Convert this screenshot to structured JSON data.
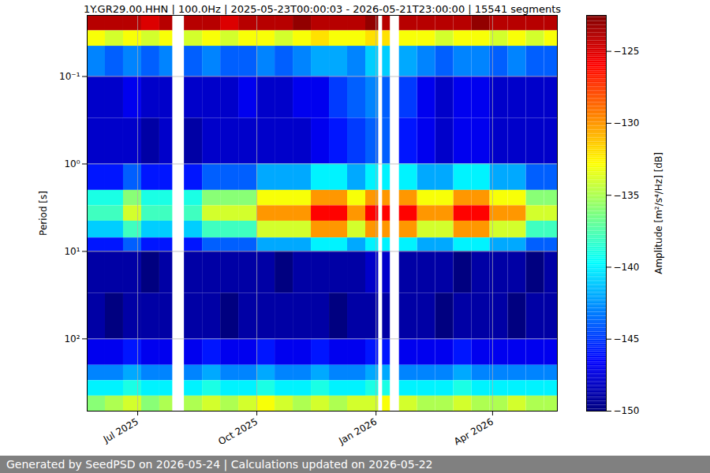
{
  "chart_data": {
    "type": "heatmap",
    "title": "1Y.GR29.00.HHN | 100.0Hz | 2025-05-23T00:00:03 - 2026-05-21T23:00:00 | 15541 segments",
    "ylabel": "Period [s]",
    "footer": "Generated by SeedPSD on 2026-05-24 | Calculations updated on 2026-05-22",
    "x_bins": [
      "2025-05-23",
      "2025-06-06",
      "2025-06-20",
      "2025-07-04",
      "2025-07-18",
      "2025-07-28",
      "2025-08-06",
      "2025-08-20",
      "2025-09-03",
      "2025-09-17",
      "2025-10-01",
      "2025-10-15",
      "2025-10-29",
      "2025-11-12",
      "2025-11-26",
      "2025-12-10",
      "2025-12-24",
      "2026-01-03",
      "2026-01-06",
      "2026-01-12",
      "2026-01-19",
      "2026-02-02",
      "2026-02-16",
      "2026-03-02",
      "2026-03-16",
      "2026-03-30",
      "2026-04-13",
      "2026-04-27",
      "2026-05-11",
      "2026-05-21"
    ],
    "y_bins": [
      0.02,
      0.03,
      0.045,
      0.1,
      0.3,
      1,
      2,
      3,
      4.5,
      7,
      10,
      30,
      100,
      200,
      300,
      450,
      670
    ],
    "values": [
      [
        -124,
        -124,
        -124,
        -125,
        -124,
        null,
        -124,
        -124,
        -125,
        -124,
        -124,
        -124,
        -123,
        -124,
        -124,
        -124,
        -123,
        null,
        -124,
        null,
        -124,
        -124,
        -124,
        -124,
        -123,
        -124,
        -124,
        -124,
        -124
      ],
      [
        -133,
        -134,
        -133,
        -134,
        -133,
        null,
        -134,
        -133,
        -134,
        -133,
        -133,
        -134,
        -133,
        -132,
        -133,
        -133,
        -132,
        null,
        -132,
        null,
        -133,
        -133,
        -134,
        -133,
        -133,
        -134,
        -133,
        -134,
        -133
      ],
      [
        -143,
        -144,
        -143,
        -144,
        -143,
        null,
        -144,
        -143,
        -144,
        -144,
        -143,
        -144,
        -143,
        -142,
        -142,
        -143,
        -141,
        null,
        -141,
        null,
        -142,
        -143,
        -144,
        -143,
        -143,
        -144,
        -143,
        -144,
        -144
      ],
      [
        -148,
        -148,
        -147,
        -148,
        -148,
        null,
        -148,
        -148,
        -148,
        -147,
        -148,
        -148,
        -147,
        -147,
        -145,
        -144,
        -143,
        null,
        -144,
        null,
        -145,
        -147,
        -148,
        -147,
        -147,
        -148,
        -148,
        -148,
        -148
      ],
      [
        -148,
        -148,
        -148,
        -149,
        -148,
        null,
        -149,
        -148,
        -148,
        -148,
        -148,
        -148,
        -148,
        -147,
        -146,
        -145,
        -144,
        null,
        -144,
        null,
        -146,
        -147,
        -148,
        -147,
        -147,
        -148,
        -148,
        -148,
        -148
      ],
      [
        -146,
        -146,
        -144,
        -146,
        -146,
        null,
        -146,
        -144,
        -144,
        -144,
        -142,
        -142,
        -142,
        -140,
        -140,
        -142,
        -140,
        null,
        -140,
        null,
        -140,
        -142,
        -142,
        -140,
        -140,
        -142,
        -142,
        -144,
        -144
      ],
      [
        -139,
        -139,
        -136,
        -139,
        -139,
        null,
        -139,
        -136,
        -136,
        -136,
        -133,
        -133,
        -133,
        -130,
        -130,
        -133,
        -130,
        null,
        -130,
        null,
        -130,
        -133,
        -133,
        -130,
        -130,
        -133,
        -133,
        -136,
        -136
      ],
      [
        -138,
        -138,
        -134,
        -138,
        -138,
        null,
        -138,
        -134,
        -134,
        -134,
        -130,
        -130,
        -130,
        -126,
        -126,
        -130,
        -126,
        null,
        -126,
        null,
        -126,
        -130,
        -130,
        -126,
        -126,
        -130,
        -130,
        -134,
        -134
      ],
      [
        -141,
        -141,
        -138,
        -141,
        -141,
        null,
        -141,
        -138,
        -138,
        -138,
        -134,
        -134,
        -134,
        -130,
        -130,
        -134,
        -130,
        null,
        -130,
        null,
        -130,
        -134,
        -134,
        -130,
        -130,
        -134,
        -134,
        -138,
        -138
      ],
      [
        -146,
        -146,
        -144,
        -146,
        -146,
        null,
        -146,
        -144,
        -144,
        -144,
        -142,
        -142,
        -142,
        -140,
        -140,
        -142,
        -140,
        null,
        -140,
        null,
        -140,
        -142,
        -142,
        -140,
        -140,
        -142,
        -142,
        -144,
        -144
      ],
      [
        -149,
        -149,
        -149,
        -150,
        -149,
        null,
        -149,
        -149,
        -149,
        -149,
        -149,
        -150,
        -149,
        -149,
        -149,
        -149,
        -148,
        null,
        -148,
        null,
        -149,
        -149,
        -149,
        -150,
        -149,
        -149,
        -149,
        -150,
        -149
      ],
      [
        -149,
        -150,
        -149,
        -149,
        -149,
        null,
        -149,
        -149,
        -150,
        -149,
        -149,
        -149,
        -149,
        -149,
        -150,
        -149,
        -149,
        null,
        -149,
        null,
        -149,
        -149,
        -150,
        -149,
        -149,
        -149,
        -150,
        -149,
        -149
      ],
      [
        -147,
        -147,
        -146,
        -147,
        -147,
        null,
        -147,
        -146,
        -147,
        -147,
        -146,
        -147,
        -147,
        -146,
        -147,
        -147,
        -146,
        null,
        -146,
        null,
        -147,
        -147,
        -147,
        -146,
        -147,
        -147,
        -147,
        -147,
        -147
      ],
      [
        -143,
        -143,
        -142,
        -143,
        -143,
        null,
        -143,
        -142,
        -143,
        -143,
        -142,
        -143,
        -143,
        -142,
        -143,
        -143,
        -142,
        null,
        -142,
        null,
        -143,
        -143,
        -143,
        -142,
        -143,
        -143,
        -143,
        -143,
        -143
      ],
      [
        -140,
        -140,
        -139,
        -140,
        -140,
        null,
        -140,
        -139,
        -140,
        -140,
        -139,
        -140,
        -140,
        -139,
        -140,
        -140,
        -139,
        null,
        -139,
        null,
        -140,
        -140,
        -140,
        -139,
        -140,
        -140,
        -140,
        -140,
        -140
      ],
      [
        -136,
        -135,
        -134,
        -136,
        -135,
        null,
        -135,
        -134,
        -135,
        -134,
        -133,
        -134,
        -135,
        -134,
        -135,
        -134,
        -134,
        null,
        -133,
        null,
        -134,
        -135,
        -135,
        -134,
        -135,
        -135,
        -134,
        -135,
        -135
      ]
    ],
    "xlim": [
      "2025-05-23",
      "2026-05-21"
    ],
    "ylim": [
      0.02,
      670
    ],
    "log": "y",
    "grid": true,
    "xticks": [
      {
        "value": "2025-07-01",
        "label": "Jul 2025"
      },
      {
        "value": "2025-10-01",
        "label": "Oct 2025"
      },
      {
        "value": "2026-01-01",
        "label": "Jan 2026"
      },
      {
        "value": "2026-04-01",
        "label": "Apr 2026"
      }
    ],
    "yticks": [
      {
        "value": 0.1,
        "label": "10⁻¹"
      },
      {
        "value": 1,
        "label": "10⁰"
      },
      {
        "value": 10,
        "label": "10¹"
      },
      {
        "value": 100,
        "label": "10²"
      }
    ],
    "colorbar": {
      "label": "Amplitude [m²/s⁴/Hz] [dB]",
      "range": [
        -150,
        -122.5
      ],
      "ticks": [
        {
          "value": -150,
          "label": "−150"
        },
        {
          "value": -145,
          "label": "−145"
        },
        {
          "value": -140,
          "label": "−140"
        },
        {
          "value": -135,
          "label": "−135"
        },
        {
          "value": -130,
          "label": "−130"
        },
        {
          "value": -125,
          "label": "−125"
        }
      ]
    }
  }
}
